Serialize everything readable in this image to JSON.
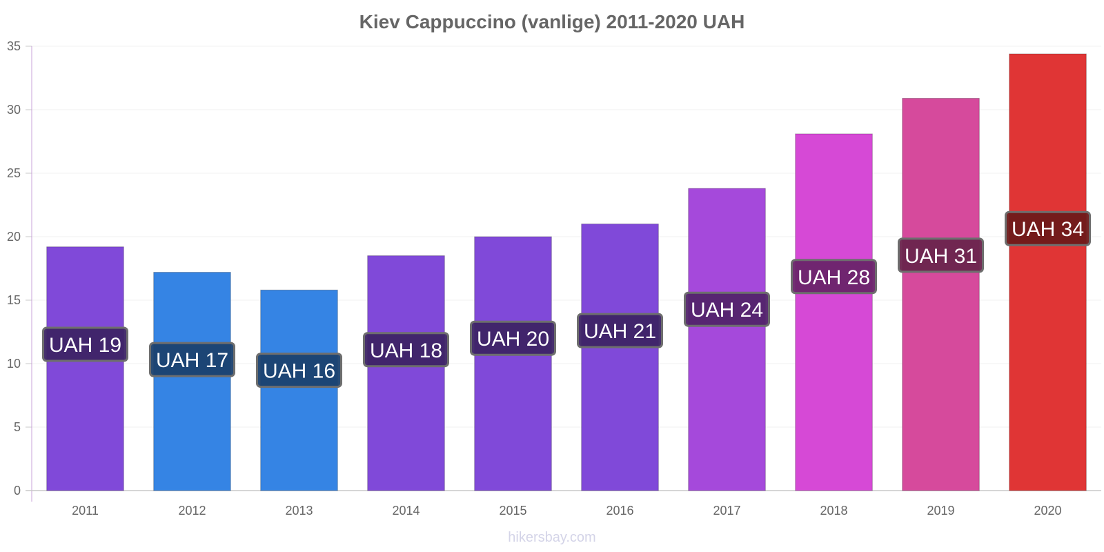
{
  "chart_data": {
    "type": "bar",
    "title": "Kiev Cappuccino (vanlige) 2011-2020 UAH",
    "xlabel": "",
    "ylabel": "",
    "categories": [
      "2011",
      "2012",
      "2013",
      "2014",
      "2015",
      "2016",
      "2017",
      "2018",
      "2019",
      "2020"
    ],
    "values": [
      19.2,
      17.2,
      15.8,
      18.5,
      20.0,
      21.0,
      23.8,
      28.1,
      30.9,
      34.4
    ],
    "data_labels": [
      "UAH 19",
      "UAH 17",
      "UAH 16",
      "UAH 18",
      "UAH 20",
      "UAH 21",
      "UAH 24",
      "UAH 28",
      "UAH 31",
      "UAH 34"
    ],
    "bar_colors": [
      "#8049d9",
      "#3584e4",
      "#3584e4",
      "#8049d9",
      "#8049d9",
      "#8049d9",
      "#a549db",
      "#d649d6",
      "#d64a9c",
      "#e03535"
    ],
    "label_bg_colors": [
      "#3d2466",
      "#1b416f",
      "#1b416f",
      "#3d2466",
      "#3d2466",
      "#3d2466",
      "#52246c",
      "#6a246a",
      "#6a244d",
      "#6e1a1a"
    ],
    "ylim": [
      0,
      35
    ],
    "yticks": [
      0,
      5,
      10,
      15,
      20,
      25,
      30,
      35
    ],
    "grid": true,
    "legend": "none"
  },
  "watermark": "hikersbay.com"
}
